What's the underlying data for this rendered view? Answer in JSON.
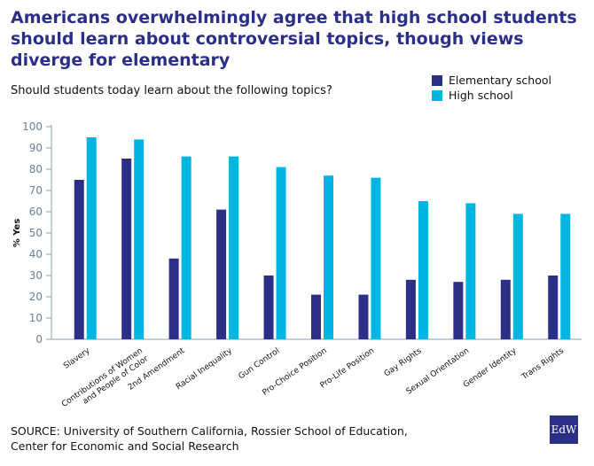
{
  "chart_data": {
    "type": "bar",
    "title": "Americans overwhelmingly agree that high school students should learn about controversial topics, though views diverge for elementary",
    "subtitle": "Should students today learn about the following topics?",
    "ylabel": "% Yes",
    "xlabel": "",
    "ylim": [
      0,
      100
    ],
    "yticks": [
      "0",
      "10",
      "20",
      "30",
      "40",
      "50",
      "60",
      "70",
      "80",
      "90",
      "100"
    ],
    "categories": [
      "Slavery",
      "Contributions of Women and People of Color",
      "2nd Amendment",
      "Racial Inequality",
      "Gun Control",
      "Pro-Choice Position",
      "Pro-Life Position",
      "Gay Rights",
      "Sexual Orientation",
      "Gender Identity",
      "Trans Rights"
    ],
    "series": [
      {
        "name": "Elementary school",
        "color": "#2b2f86",
        "values": [
          75,
          85,
          38,
          61,
          30,
          21,
          21,
          28,
          27,
          28,
          30
        ]
      },
      {
        "name": "High school",
        "color": "#00b5e2",
        "values": [
          95,
          94,
          86,
          86,
          81,
          77,
          76,
          65,
          64,
          59,
          59
        ]
      }
    ],
    "grid": false,
    "legend_position": "top-right"
  },
  "source": {
    "line1": "SOURCE: University of Southern California, Rossier School of Education,",
    "line2": "Center for Economic and Social Research"
  },
  "logo_text": "EdW"
}
